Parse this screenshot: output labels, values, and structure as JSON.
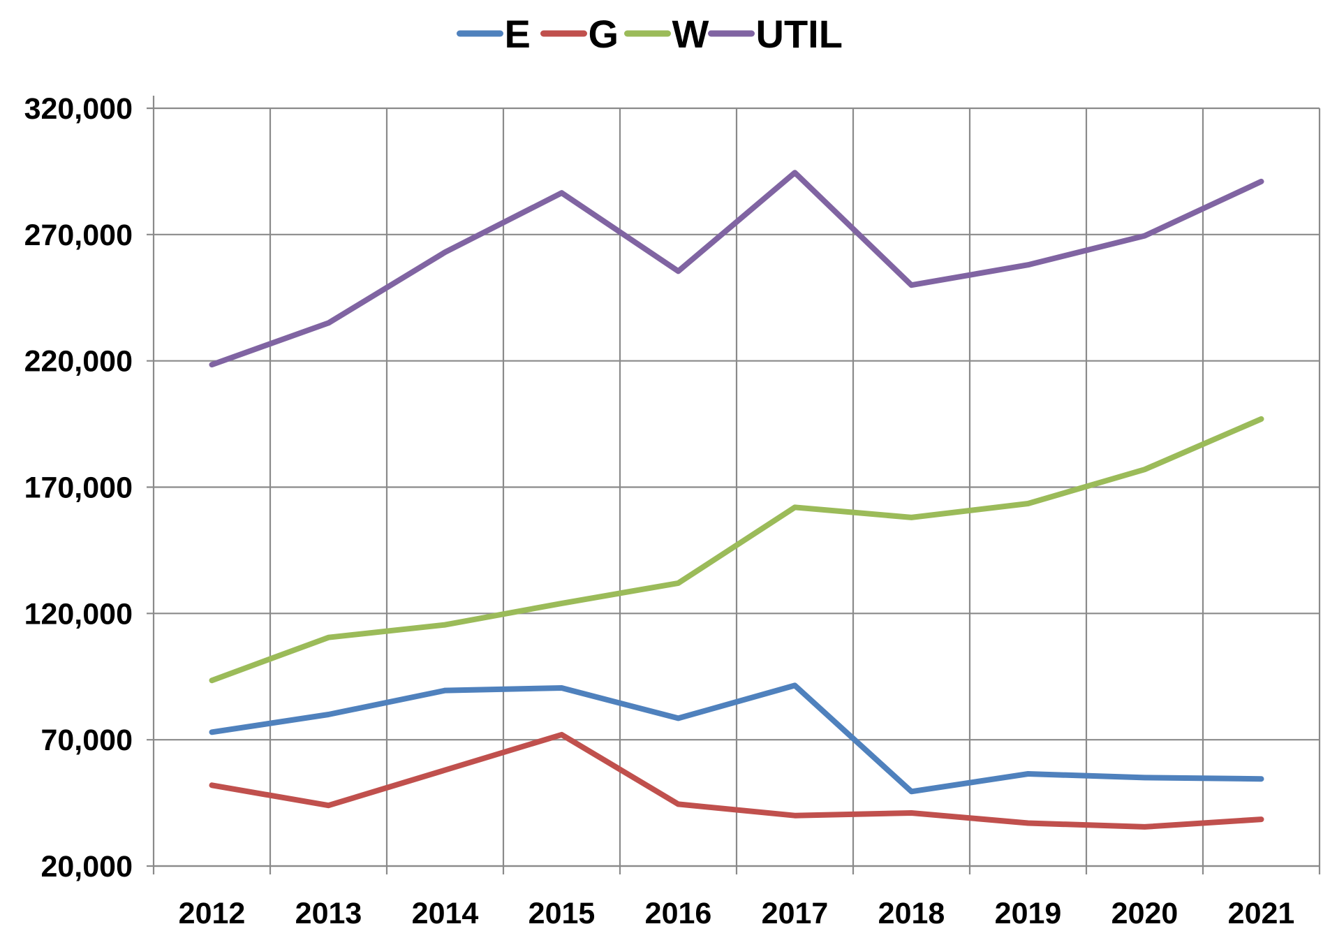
{
  "chart_data": {
    "type": "line",
    "title": "",
    "xlabel": "",
    "ylabel": "",
    "categories": [
      "2012",
      "2013",
      "2014",
      "2015",
      "2016",
      "2017",
      "2018",
      "2019",
      "2020",
      "2021"
    ],
    "series": [
      {
        "name": "E",
        "color": "#4f81bd",
        "values": [
          73000,
          80000,
          89500,
          90500,
          78500,
          91500,
          49500,
          56500,
          55000,
          54500
        ]
      },
      {
        "name": "G",
        "color": "#c0504d",
        "values": [
          52000,
          44000,
          58000,
          72000,
          44500,
          40000,
          41000,
          37000,
          35500,
          38500
        ]
      },
      {
        "name": "W",
        "color": "#9bbb59",
        "values": [
          93500,
          110500,
          115500,
          124000,
          132000,
          162000,
          158000,
          163500,
          177000,
          197000
        ]
      },
      {
        "name": "UTIL",
        "color": "#8064a2",
        "values": [
          218500,
          235000,
          263000,
          286500,
          255500,
          294500,
          250000,
          258000,
          269500,
          291000
        ]
      }
    ],
    "ylim": [
      20000,
      320000
    ],
    "yticks": [
      20000,
      70000,
      120000,
      170000,
      220000,
      270000,
      320000
    ],
    "ytick_labels": [
      "20,000",
      "70,000",
      "120,000",
      "170,000",
      "220,000",
      "270,000",
      "320,000"
    ],
    "grid": true,
    "legend_position": "top-center"
  }
}
